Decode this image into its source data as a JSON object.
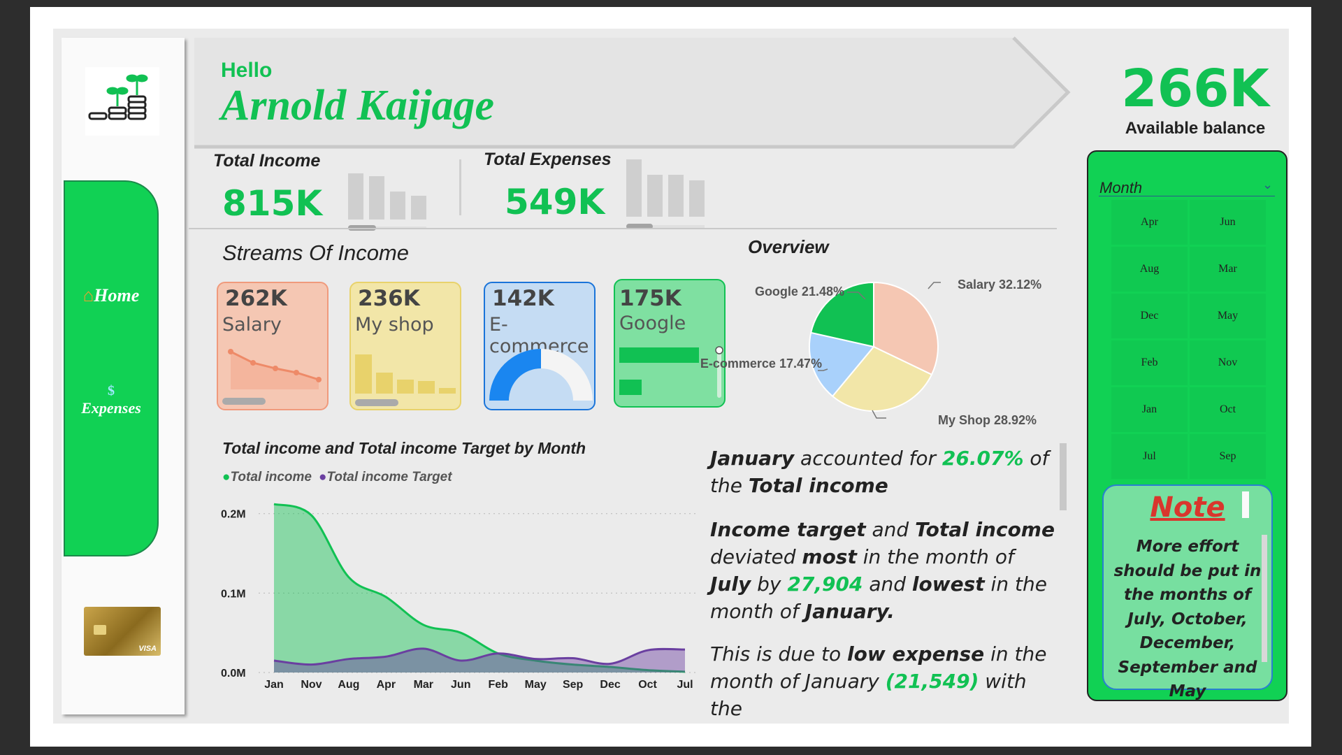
{
  "user": {
    "greeting": "Hello",
    "name": "Arnold Kaijage"
  },
  "nav": [
    {
      "label": "Home",
      "icon": "house-icon"
    },
    {
      "label": "Expenses",
      "icon": "money-icon"
    }
  ],
  "kpis": {
    "total_income": {
      "label": "Total Income",
      "value": "815K"
    },
    "total_expenses": {
      "label": "Total Expenses",
      "value": "549K"
    }
  },
  "balance": {
    "value": "266K",
    "label": "Available balance"
  },
  "streams": {
    "title": "Streams Of Income",
    "items": [
      {
        "value": "262K",
        "name": "Salary",
        "color": "#f5c7b3",
        "border": "#f09a7c"
      },
      {
        "value": "236K",
        "name": "My shop",
        "color": "#f2e6a8",
        "border": "#e8d26b"
      },
      {
        "value": "142K",
        "name": "E-commerce",
        "color": "#c5dcf3",
        "border": "#1a74d9"
      },
      {
        "value": "175K",
        "name": "Google",
        "color": "#7fe0a1",
        "border": "#11c153"
      }
    ]
  },
  "overview": {
    "title": "Overview",
    "chart_data": {
      "type": "pie",
      "slices": [
        {
          "name": "Salary",
          "value": 32.12,
          "label": "Salary 32.12%",
          "color": "#f5c7b3"
        },
        {
          "name": "My Shop",
          "value": 28.92,
          "label": "My Shop 28.92%",
          "color": "#f2e6a8"
        },
        {
          "name": "E-commerce",
          "value": 17.47,
          "label": "E-commerce 17.47%",
          "color": "#a9d1fb"
        },
        {
          "name": "Google",
          "value": 21.48,
          "label": "Google 21.48%",
          "color": "#11c153"
        }
      ]
    }
  },
  "area_chart": {
    "title": "Total income and Total income Target by Month",
    "chart_data": {
      "type": "area",
      "categories": [
        "Jan",
        "Nov",
        "Aug",
        "Apr",
        "Mar",
        "Jun",
        "Feb",
        "May",
        "Sep",
        "Dec",
        "Oct",
        "Jul"
      ],
      "series": [
        {
          "name": "Total income",
          "color": "#11c153",
          "values": [
            212000,
            198000,
            120000,
            95000,
            60000,
            50000,
            24000,
            15000,
            10000,
            7000,
            3000,
            1000
          ]
        },
        {
          "name": "Total income Target",
          "color": "#6a3fa0",
          "values": [
            15000,
            10000,
            17000,
            20000,
            30000,
            15000,
            24000,
            17000,
            18000,
            11000,
            28000,
            28904
          ]
        }
      ],
      "y_ticks": [
        "0.2M",
        "0.1M",
        "0.0M"
      ],
      "ylim": [
        0,
        220000
      ],
      "grid": true,
      "legend": "top-left"
    }
  },
  "insights": {
    "p1": [
      "January",
      " accounted for ",
      "26.07%",
      " of the ",
      "Total income"
    ],
    "p2": [
      "Income target",
      " and ",
      "Total income",
      " deviated ",
      "most",
      " in the month of ",
      "July",
      " by ",
      "27,904",
      " and ",
      "lowest",
      " in the month of ",
      "January."
    ],
    "p3": [
      "This is due to ",
      "low expense",
      " in the month of January ",
      "(21,549)",
      " with the"
    ]
  },
  "slicer": {
    "title": "Month",
    "months": [
      "Apr",
      "Jun",
      "Aug",
      "Mar",
      "Dec",
      "May",
      "Feb",
      "Nov",
      "Jan",
      "Oct",
      "Jul",
      "Sep"
    ]
  },
  "note": {
    "title": "Note",
    "text": "More effort should be put in the months of July, October, December, September and May"
  }
}
